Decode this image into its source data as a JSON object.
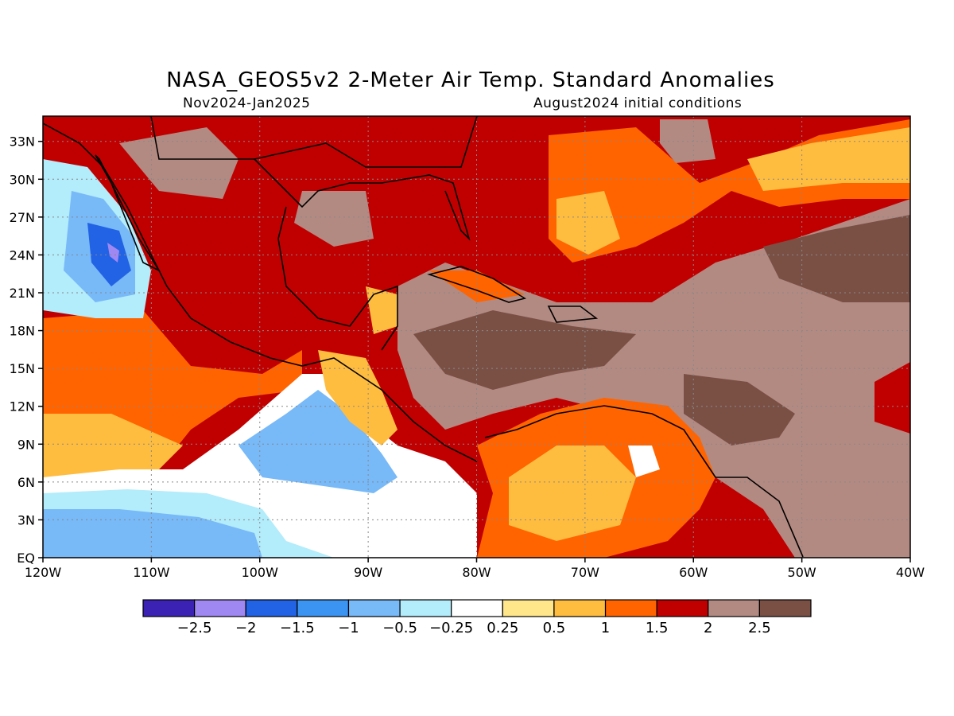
{
  "header": {
    "title": "NASA_GEOS5v2 2-Meter Air Temp. Standard Anomalies",
    "period": "Nov2024-Jan2025",
    "init": "August2024 initial conditions"
  },
  "map": {
    "lon_range": [
      -120,
      -40
    ],
    "lat_range": [
      0,
      35
    ],
    "lon_ticks": [
      {
        "v": -120,
        "label": "120W"
      },
      {
        "v": -110,
        "label": "110W"
      },
      {
        "v": -100,
        "label": "100W"
      },
      {
        "v": -90,
        "label": "90W"
      },
      {
        "v": -80,
        "label": "80W"
      },
      {
        "v": -70,
        "label": "70W"
      },
      {
        "v": -60,
        "label": "60W"
      },
      {
        "v": -50,
        "label": "50W"
      },
      {
        "v": -40,
        "label": "40W"
      }
    ],
    "lat_ticks": [
      {
        "v": 0,
        "label": "EQ"
      },
      {
        "v": 3,
        "label": "3N"
      },
      {
        "v": 6,
        "label": "6N"
      },
      {
        "v": 9,
        "label": "9N"
      },
      {
        "v": 12,
        "label": "12N"
      },
      {
        "v": 15,
        "label": "15N"
      },
      {
        "v": 18,
        "label": "18N"
      },
      {
        "v": 21,
        "label": "21N"
      },
      {
        "v": 24,
        "label": "24N"
      },
      {
        "v": 27,
        "label": "27N"
      },
      {
        "v": 30,
        "label": "30N"
      },
      {
        "v": 33,
        "label": "33N"
      }
    ],
    "gridlines": true
  },
  "colorbar": {
    "colors": [
      "#3c22b4",
      "#9f88f2",
      "#2262e4",
      "#3c94f2",
      "#78b9f8",
      "#b3ecfb",
      "#ffffff",
      "#ffe68a",
      "#ffbd40",
      "#ff6400",
      "#c00000",
      "#b38a82",
      "#7a5045"
    ],
    "labels": [
      "-2.5",
      "-2",
      "-1.5",
      "-1",
      "-0.5",
      "-0.25",
      "0.25",
      "0.5",
      "1",
      "1.5",
      "2",
      "2.5"
    ]
  },
  "chart_data": {
    "type": "heatmap",
    "title": "NASA_GEOS5v2 2-Meter Air Temp. Standard Anomalies",
    "subtitle": "Nov2024-Jan2025",
    "variable": "2-Meter Air Temp. Standard Anomalies",
    "x_range": [
      -120,
      -40
    ],
    "y_range": [
      0,
      35
    ],
    "levels": [
      -2.5,
      -2,
      -1.5,
      -1,
      -0.5,
      -0.25,
      0.25,
      0.5,
      1,
      1.5,
      2,
      2.5
    ],
    "regions": [
      {
        "lon": [
          -115,
          -110
        ],
        "lat": [
          20,
          26
        ],
        "value": -1.5
      },
      {
        "lon": [
          -105,
          -85
        ],
        "lat": [
          4,
          12
        ],
        "value": -0.5
      },
      {
        "lon": [
          -120,
          -105
        ],
        "lat": [
          0,
          4
        ],
        "value": -1.0
      },
      {
        "lon": [
          -120,
          -100
        ],
        "lat": [
          10,
          20
        ],
        "value": 1.2
      },
      {
        "lon": [
          -110,
          -80
        ],
        "lat": [
          22,
          35
        ],
        "value": 1.8
      },
      {
        "lon": [
          -85,
          -60
        ],
        "lat": [
          12,
          22
        ],
        "value": 2.5
      },
      {
        "lon": [
          -60,
          -40
        ],
        "lat": [
          8,
          26
        ],
        "value": 2.3
      },
      {
        "lon": [
          -75,
          -55
        ],
        "lat": [
          2,
          10
        ],
        "value": 0.8
      },
      {
        "lon": [
          -70,
          -45
        ],
        "lat": [
          28,
          35
        ],
        "value": 1.0
      },
      {
        "lon": [
          -55,
          -40
        ],
        "lat": [
          0,
          8
        ],
        "value": 2.2
      }
    ]
  }
}
